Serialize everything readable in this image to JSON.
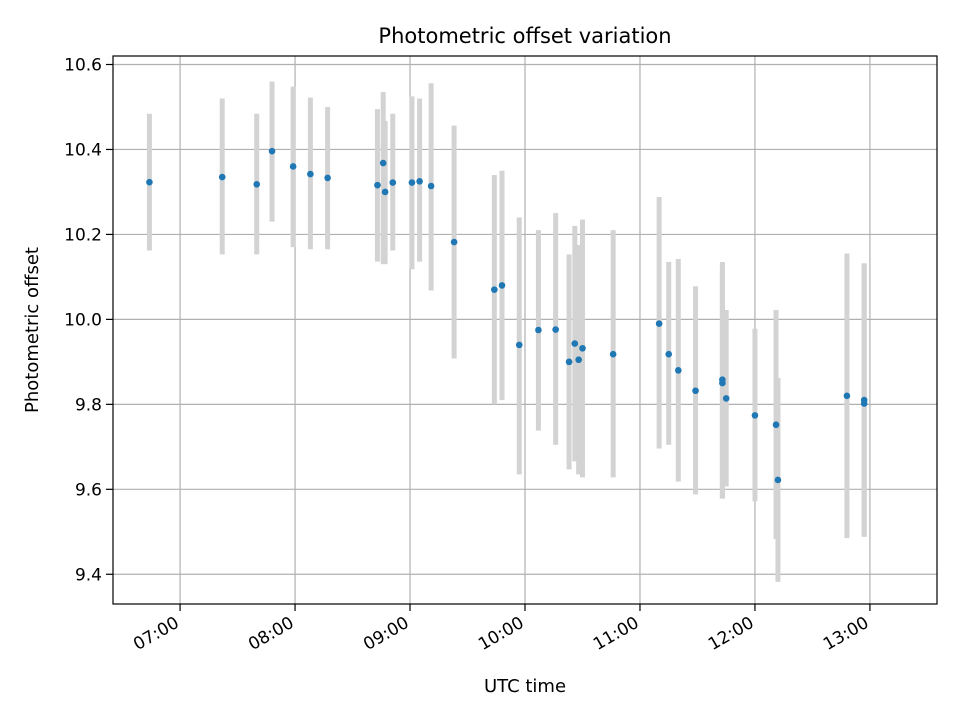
{
  "chart_data": {
    "type": "scatter",
    "title": "Photometric offset variation",
    "xlabel": "UTC time",
    "ylabel": "Photometric offset",
    "xlim": [
      "06:25",
      "13:35"
    ],
    "ylim": [
      9.33,
      10.62
    ],
    "x_ticks": [
      "07:00",
      "08:00",
      "09:00",
      "10:00",
      "11:00",
      "12:00",
      "13:00"
    ],
    "y_ticks": [
      9.4,
      9.6,
      9.8,
      10.0,
      10.2,
      10.4,
      10.6
    ],
    "y_tick_labels": [
      "9.4",
      "9.6",
      "9.8",
      "10.0",
      "10.2",
      "10.4",
      "10.6"
    ],
    "grid": true,
    "colors": {
      "points": "#1f77b4",
      "error_bars": "#d3d3d3",
      "grid": "#b0b0b0"
    },
    "points": [
      {
        "x": "06:44",
        "y": 10.323,
        "ylow": 10.162,
        "yhigh": 10.484
      },
      {
        "x": "07:22",
        "y": 10.335,
        "ylow": 10.153,
        "yhigh": 10.52
      },
      {
        "x": "07:40",
        "y": 10.318,
        "ylow": 10.153,
        "yhigh": 10.484
      },
      {
        "x": "07:48",
        "y": 10.396,
        "ylow": 10.23,
        "yhigh": 10.56
      },
      {
        "x": "07:59",
        "y": 10.36,
        "ylow": 10.17,
        "yhigh": 10.548
      },
      {
        "x": "08:08",
        "y": 10.342,
        "ylow": 10.165,
        "yhigh": 10.522
      },
      {
        "x": "08:17",
        "y": 10.333,
        "ylow": 10.165,
        "yhigh": 10.5
      },
      {
        "x": "08:43",
        "y": 10.316,
        "ylow": 10.136,
        "yhigh": 10.495
      },
      {
        "x": "08:46",
        "y": 10.368,
        "ylow": 10.13,
        "yhigh": 10.535
      },
      {
        "x": "08:47",
        "y": 10.3,
        "ylow": 10.13,
        "yhigh": 10.467
      },
      {
        "x": "08:51",
        "y": 10.322,
        "ylow": 10.162,
        "yhigh": 10.484
      },
      {
        "x": "09:01",
        "y": 10.322,
        "ylow": 10.118,
        "yhigh": 10.525
      },
      {
        "x": "09:05",
        "y": 10.325,
        "ylow": 10.136,
        "yhigh": 10.52
      },
      {
        "x": "09:11",
        "y": 10.314,
        "ylow": 10.068,
        "yhigh": 10.556
      },
      {
        "x": "09:23",
        "y": 10.182,
        "ylow": 9.908,
        "yhigh": 10.456
      },
      {
        "x": "09:44",
        "y": 10.07,
        "ylow": 9.8,
        "yhigh": 10.34
      },
      {
        "x": "09:48",
        "y": 10.08,
        "ylow": 9.81,
        "yhigh": 10.35
      },
      {
        "x": "09:57",
        "y": 9.94,
        "ylow": 9.635,
        "yhigh": 10.24
      },
      {
        "x": "10:07",
        "y": 9.975,
        "ylow": 9.738,
        "yhigh": 10.21
      },
      {
        "x": "10:16",
        "y": 9.976,
        "ylow": 9.705,
        "yhigh": 10.25
      },
      {
        "x": "10:23",
        "y": 9.9,
        "ylow": 9.647,
        "yhigh": 10.153
      },
      {
        "x": "10:26",
        "y": 9.943,
        "ylow": 9.666,
        "yhigh": 10.22
      },
      {
        "x": "10:28",
        "y": 9.905,
        "ylow": 9.635,
        "yhigh": 10.175
      },
      {
        "x": "10:30",
        "y": 9.932,
        "ylow": 9.628,
        "yhigh": 10.235
      },
      {
        "x": "10:46",
        "y": 9.918,
        "ylow": 9.628,
        "yhigh": 10.21
      },
      {
        "x": "11:10",
        "y": 9.99,
        "ylow": 9.696,
        "yhigh": 10.288
      },
      {
        "x": "11:15",
        "y": 9.918,
        "ylow": 9.705,
        "yhigh": 10.135
      },
      {
        "x": "11:20",
        "y": 9.88,
        "ylow": 9.618,
        "yhigh": 10.142
      },
      {
        "x": "11:29",
        "y": 9.832,
        "ylow": 9.588,
        "yhigh": 10.078
      },
      {
        "x": "11:43",
        "y": 9.858,
        "ylow": 9.578,
        "yhigh": 10.135
      },
      {
        "x": "11:43",
        "y": 9.85,
        "ylow": 9.578,
        "yhigh": 10.122
      },
      {
        "x": "11:45",
        "y": 9.814,
        "ylow": 9.607,
        "yhigh": 10.022
      },
      {
        "x": "12:00",
        "y": 9.774,
        "ylow": 9.572,
        "yhigh": 9.978
      },
      {
        "x": "12:11",
        "y": 9.752,
        "ylow": 9.483,
        "yhigh": 10.022
      },
      {
        "x": "12:12",
        "y": 9.622,
        "ylow": 9.382,
        "yhigh": 9.862
      },
      {
        "x": "12:48",
        "y": 9.82,
        "ylow": 9.485,
        "yhigh": 10.155
      },
      {
        "x": "12:57",
        "y": 9.802,
        "ylow": 9.488,
        "yhigh": 10.132
      },
      {
        "x": "12:57",
        "y": 9.81,
        "ylow": 9.49,
        "yhigh": 10.13
      }
    ]
  }
}
